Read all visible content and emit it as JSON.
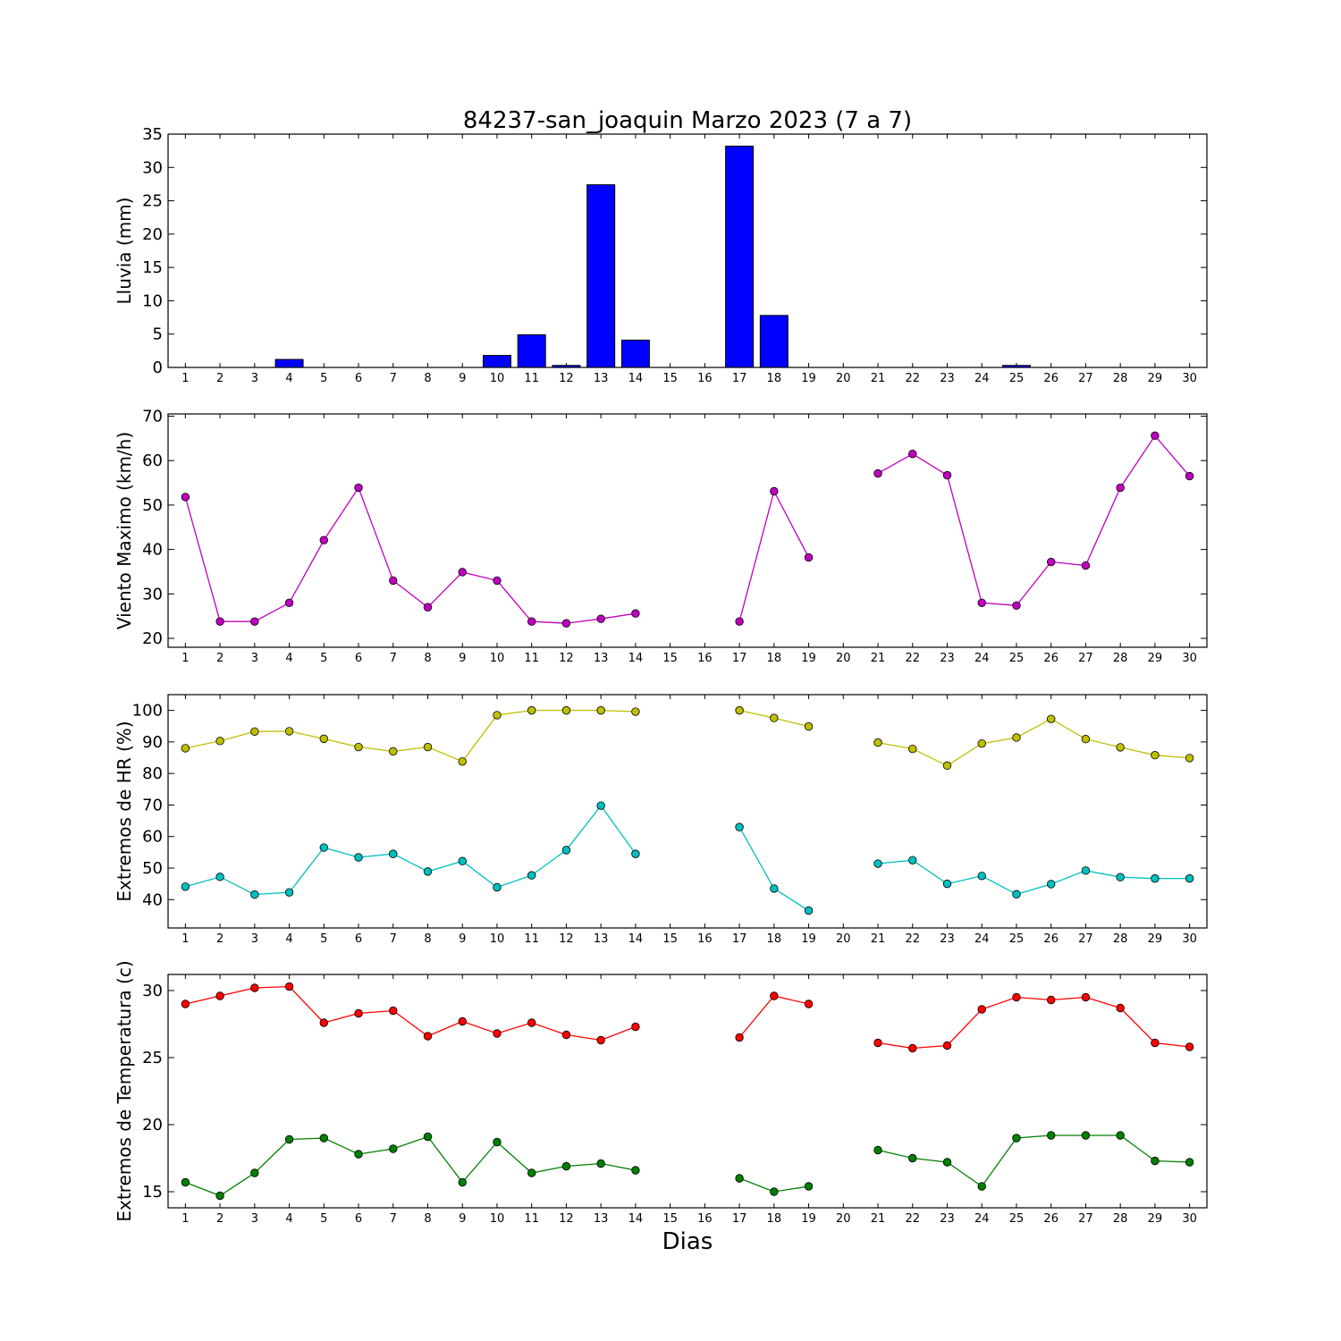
{
  "title": "84237-san_joaquin Marzo 2023  (7 a 7)",
  "xlabel": "Dias",
  "chart_data": [
    {
      "type": "bar",
      "ylabel": "Lluvia (mm)",
      "ylim": [
        0,
        35
      ],
      "yticks": [
        0,
        5,
        10,
        15,
        20,
        25,
        30,
        35
      ],
      "x": [
        1,
        2,
        3,
        4,
        5,
        6,
        7,
        8,
        9,
        10,
        11,
        12,
        13,
        14,
        15,
        16,
        17,
        18,
        19,
        20,
        21,
        22,
        23,
        24,
        25,
        26,
        27,
        28,
        29,
        30
      ],
      "series": [
        {
          "color": "#0000ff",
          "values": [
            0,
            0,
            0,
            1.2,
            0,
            0,
            0,
            0,
            0,
            1.8,
            4.9,
            0.3,
            27.4,
            4.1,
            null,
            null,
            33.2,
            7.8,
            0,
            0,
            0,
            0,
            0,
            0,
            0.3,
            0,
            0,
            0,
            0,
            0
          ]
        }
      ]
    },
    {
      "type": "line",
      "ylabel": "Viento Maximo (km/h)",
      "ylim": [
        18,
        70.5
      ],
      "yticks": [
        20,
        30,
        40,
        50,
        60,
        70
      ],
      "x": [
        1,
        2,
        3,
        4,
        5,
        6,
        7,
        8,
        9,
        10,
        11,
        12,
        13,
        14,
        15,
        16,
        17,
        18,
        19,
        20,
        21,
        22,
        23,
        24,
        25,
        26,
        27,
        28,
        29,
        30
      ],
      "series": [
        {
          "color": "#bf00bf",
          "values": [
            51.8,
            23.8,
            23.8,
            28,
            42.1,
            53.9,
            33,
            27,
            34.9,
            33,
            23.8,
            23.4,
            24.4,
            25.6,
            null,
            null,
            23.8,
            53.1,
            38.2,
            null,
            57.1,
            61.5,
            56.7,
            28,
            27.4,
            37.2,
            36.4,
            53.9,
            65.6,
            56.5
          ]
        }
      ]
    },
    {
      "type": "line",
      "ylabel": "Extremos de HR (%)",
      "ylim": [
        31,
        105
      ],
      "yticks": [
        40,
        50,
        60,
        70,
        80,
        90,
        100
      ],
      "x": [
        1,
        2,
        3,
        4,
        5,
        6,
        7,
        8,
        9,
        10,
        11,
        12,
        13,
        14,
        15,
        16,
        17,
        18,
        19,
        20,
        21,
        22,
        23,
        24,
        25,
        26,
        27,
        28,
        29,
        30
      ],
      "series": [
        {
          "color": "#bfbf00",
          "values": [
            88,
            90.3,
            93.3,
            93.4,
            91,
            88.4,
            87,
            88.4,
            83.8,
            98.5,
            100,
            100,
            100,
            99.6,
            null,
            null,
            100,
            97.6,
            94.9,
            null,
            89.8,
            87.8,
            82.5,
            89.5,
            91.4,
            97.3,
            90.9,
            88.3,
            85.8,
            84.9
          ]
        },
        {
          "color": "#00bfbf",
          "values": [
            44.1,
            47.2,
            41.6,
            42.3,
            56.5,
            53.4,
            54.5,
            48.9,
            52.2,
            43.9,
            47.7,
            55.7,
            69.8,
            54.5,
            null,
            null,
            63,
            43.5,
            36.5,
            null,
            51.4,
            52.5,
            45,
            47.5,
            41.7,
            44.9,
            49.2,
            47.1,
            46.7,
            46.7
          ]
        }
      ]
    },
    {
      "type": "line",
      "ylabel": "Extremos de Temperatura (c)",
      "ylim": [
        13.8,
        31.2
      ],
      "yticks": [
        15,
        20,
        25,
        30
      ],
      "x": [
        1,
        2,
        3,
        4,
        5,
        6,
        7,
        8,
        9,
        10,
        11,
        12,
        13,
        14,
        15,
        16,
        17,
        18,
        19,
        20,
        21,
        22,
        23,
        24,
        25,
        26,
        27,
        28,
        29,
        30
      ],
      "series": [
        {
          "color": "#ff0000",
          "values": [
            29,
            29.6,
            30.2,
            30.3,
            27.6,
            28.3,
            28.5,
            26.6,
            27.7,
            26.8,
            27.6,
            26.7,
            26.3,
            27.3,
            null,
            null,
            26.5,
            29.6,
            29,
            null,
            26.1,
            25.7,
            25.9,
            28.6,
            29.5,
            29.3,
            29.5,
            28.7,
            26.1,
            25.8
          ]
        },
        {
          "color": "#008000",
          "values": [
            15.7,
            14.7,
            16.4,
            18.9,
            19,
            17.8,
            18.2,
            19.1,
            15.7,
            18.7,
            16.4,
            16.9,
            17.1,
            16.6,
            null,
            null,
            16,
            15,
            15.4,
            null,
            18.1,
            17.5,
            17.2,
            15.4,
            19,
            19.2,
            19.2,
            19.2,
            17.3,
            17.2
          ]
        }
      ]
    }
  ]
}
